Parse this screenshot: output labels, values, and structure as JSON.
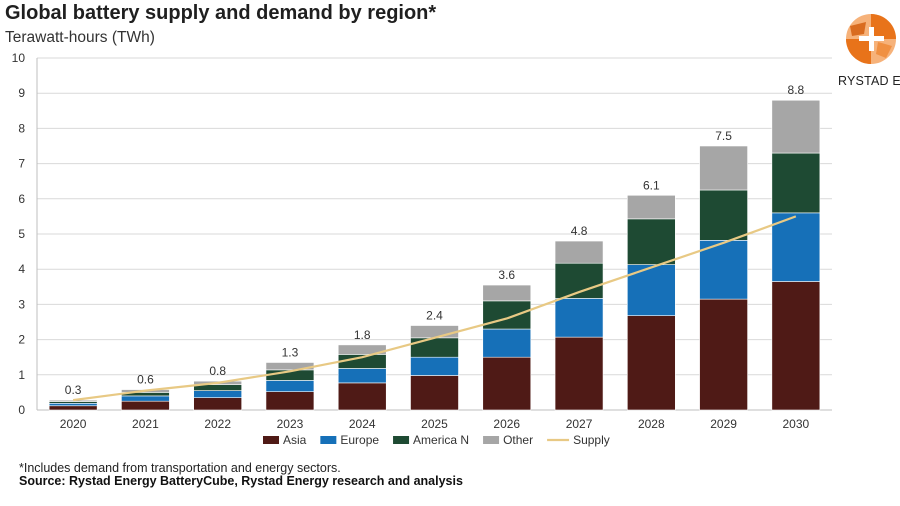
{
  "header": {
    "title": "Global battery supply and demand by region*",
    "subtitle": "Terawatt-hours (TWh)"
  },
  "logo": {
    "text": "RYSTAD ENER",
    "colors": {
      "primary": "#e8731a",
      "secondary": "#f6b27a"
    }
  },
  "footer": {
    "footnote": "*Includes demand from transportation and energy sectors.",
    "source": "Source: Rystad Energy BatteryCube, Rystad Energy research and analysis"
  },
  "chart_data": {
    "type": "bar",
    "stacked": true,
    "categories": [
      "2020",
      "2021",
      "2022",
      "2023",
      "2024",
      "2025",
      "2026",
      "2027",
      "2028",
      "2029",
      "2030"
    ],
    "ylim": [
      0,
      10
    ],
    "yticks": [
      "0",
      "1",
      "2",
      "3",
      "4",
      "5",
      "6",
      "7",
      "8",
      "9",
      "10"
    ],
    "grid": true,
    "legend_position": "bottom",
    "series": [
      {
        "name": "Asia",
        "color": "#4f1a16",
        "values": [
          0.12,
          0.25,
          0.35,
          0.52,
          0.77,
          0.98,
          1.5,
          2.07,
          2.68,
          3.15,
          3.65
        ]
      },
      {
        "name": "Europe",
        "color": "#1670b8",
        "values": [
          0.07,
          0.15,
          0.2,
          0.32,
          0.41,
          0.52,
          0.8,
          1.1,
          1.45,
          1.67,
          1.95
        ]
      },
      {
        "name": "America N",
        "color": "#1e4a33",
        "values": [
          0.05,
          0.1,
          0.17,
          0.3,
          0.4,
          0.55,
          0.8,
          1.0,
          1.3,
          1.43,
          1.7
        ]
      },
      {
        "name": "Other",
        "color": "#a6a6a6",
        "values": [
          0.04,
          0.08,
          0.1,
          0.21,
          0.27,
          0.35,
          0.45,
          0.63,
          0.67,
          1.25,
          1.5
        ]
      }
    ],
    "totals_labels": [
      "0.3",
      "0.6",
      "0.8",
      "1.3",
      "1.8",
      "2.4",
      "3.6",
      "4.8",
      "6.1",
      "7.5",
      "8.8"
    ],
    "supply": {
      "name": "Supply",
      "color": "#e8c984",
      "type": "line",
      "values": [
        0.28,
        0.55,
        0.77,
        1.1,
        1.5,
        2.05,
        2.6,
        3.35,
        4.05,
        4.75,
        5.5
      ]
    }
  }
}
